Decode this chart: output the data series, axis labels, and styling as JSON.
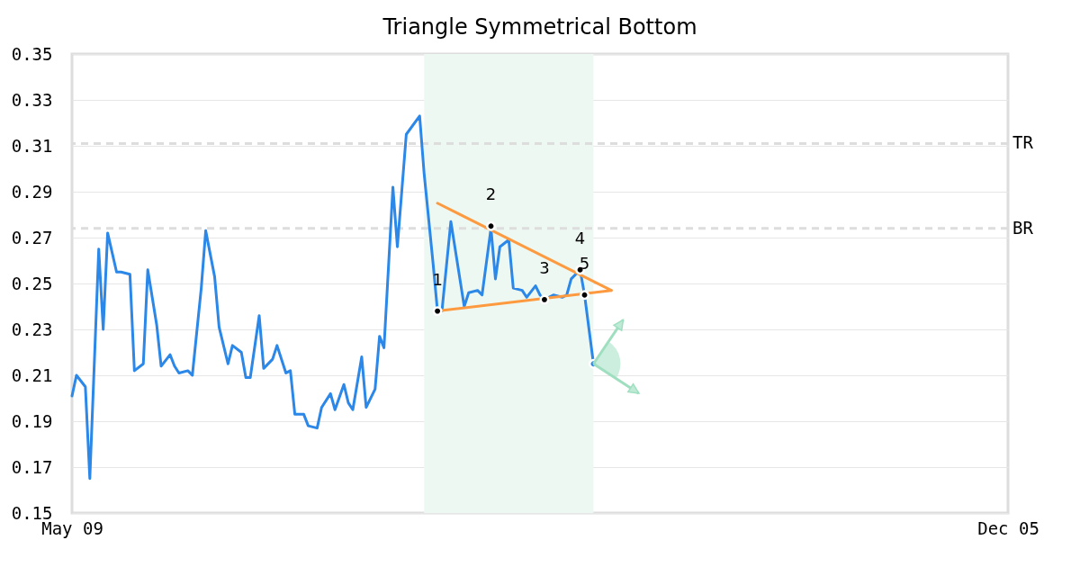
{
  "chart_data": {
    "type": "line",
    "title": "Triangle Symmetrical Bottom",
    "x": [
      "--05-09",
      "--05-10",
      "--05-12",
      "--05-13",
      "--05-15",
      "--05-16",
      "--05-17",
      "--05-19",
      "--05-20",
      "--05-22",
      "--05-23",
      "--05-25",
      "--05-26",
      "--05-28",
      "--05-29",
      "--05-31",
      "--06-01",
      "--06-02",
      "--06-04",
      "--06-05",
      "--06-07",
      "--06-08",
      "--06-10",
      "--06-11",
      "--06-13",
      "--06-14",
      "--06-16",
      "--06-17",
      "--06-18",
      "--06-20",
      "--06-21",
      "--06-23",
      "--06-24",
      "--06-26",
      "--06-27",
      "--06-28",
      "--06-30",
      "--07-01",
      "--07-03",
      "--07-04",
      "--07-06",
      "--07-07",
      "--07-09",
      "--07-10",
      "--07-11",
      "--07-13",
      "--07-14",
      "--07-16",
      "--07-17",
      "--07-18",
      "--07-20",
      "--07-21",
      "--07-23",
      "--07-26",
      "--07-27",
      "--07-29",
      "--07-30",
      "--07-31",
      "--08-02",
      "--08-05",
      "--08-06",
      "--08-08",
      "--08-09",
      "--08-11",
      "--08-12",
      "--08-13",
      "--08-15",
      "--08-16",
      "--08-18",
      "--08-19",
      "--08-21",
      "--08-22",
      "--08-23",
      "--08-25",
      "--08-27",
      "--08-28",
      "--08-29",
      "--08-31",
      "--09-01",
      "--09-03"
    ],
    "xlim": [
      "--05-09",
      "--12-05"
    ],
    "xticks": [
      {
        "value": "--05-09",
        "label": "May 09"
      },
      {
        "value": "--12-05",
        "label": "Dec 05"
      }
    ],
    "ylim": [
      0.15,
      0.35
    ],
    "yticks": [
      0.15,
      0.17,
      0.19,
      0.21,
      0.23,
      0.25,
      0.27,
      0.29,
      0.31,
      0.33,
      0.35
    ],
    "grid": "y",
    "line_style": "solid",
    "series": [
      {
        "color": "#2b87e8",
        "values": [
          0.201,
          0.21,
          0.205,
          0.165,
          0.265,
          0.23,
          0.272,
          0.255,
          0.255,
          0.254,
          0.212,
          0.215,
          0.256,
          0.232,
          0.214,
          0.219,
          0.214,
          0.211,
          0.212,
          0.21,
          0.248,
          0.273,
          0.253,
          0.231,
          0.215,
          0.223,
          0.22,
          0.209,
          0.209,
          0.236,
          0.213,
          0.217,
          0.223,
          0.211,
          0.212,
          0.193,
          0.193,
          0.188,
          0.187,
          0.196,
          0.202,
          0.195,
          0.206,
          0.198,
          0.195,
          0.218,
          0.196,
          0.204,
          0.227,
          0.222,
          0.292,
          0.266,
          0.315,
          0.323,
          0.298,
          0.259,
          0.238,
          0.238,
          0.277,
          0.24,
          0.246,
          0.247,
          0.245,
          0.274,
          0.252,
          0.266,
          0.269,
          0.248,
          0.247,
          0.244,
          0.249,
          0.245,
          0.243,
          0.245,
          0.244,
          0.245,
          0.252,
          0.256,
          0.245,
          0.215
        ]
      },
      {
        "type": "line",
        "color": "#fd9a3f",
        "x": [
          "--07-30",
          "--09-07"
        ],
        "values": [
          0.285,
          0.247
        ]
      },
      {
        "type": "line",
        "color": "#fd9a3f",
        "x": [
          "--07-30",
          "--09-07"
        ],
        "values": [
          0.238,
          0.247
        ]
      },
      {
        "type": "scatter",
        "color": "#000000",
        "marker": "circle",
        "x": [
          "--07-30",
          "--08-11",
          "--08-23",
          "--08-31",
          "--09-01"
        ],
        "values": [
          0.238,
          0.275,
          0.243,
          0.256,
          0.245
        ]
      },
      {
        "type": "scatter",
        "color": "#2b87e8",
        "marker": "circle",
        "x": [
          "--09-03"
        ],
        "values": [
          0.215
        ]
      }
    ],
    "bands": [
      {
        "axis": "x",
        "from": "--07-27",
        "to": "--09-03",
        "color": "#eef8f3"
      }
    ],
    "ref_lines": [
      {
        "axis": "y",
        "value": 0.311,
        "label": "TR",
        "color": "#dddddd",
        "line_style": "dashed"
      },
      {
        "axis": "y",
        "value": 0.274,
        "label": "BR",
        "color": "#dddddd",
        "line_style": "dashed"
      }
    ],
    "annotations": [
      {
        "text": "1",
        "x": "--07-30",
        "y": 0.238
      },
      {
        "text": "2",
        "x": "--08-11",
        "y": 0.275
      },
      {
        "text": "3",
        "x": "--08-23",
        "y": 0.243
      },
      {
        "text": "4",
        "x": "--08-31",
        "y": 0.256
      },
      {
        "text": "5",
        "x": "--09-01",
        "y": 0.245
      }
    ]
  }
}
